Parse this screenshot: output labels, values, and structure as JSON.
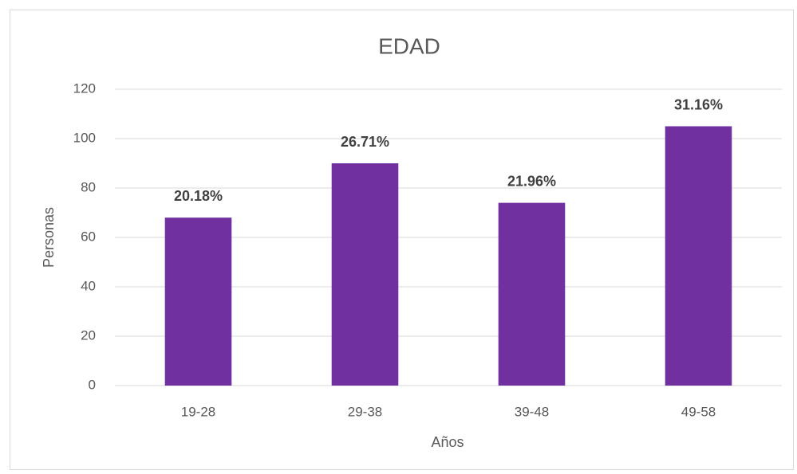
{
  "chart_data": {
    "type": "bar",
    "title": "EDAD",
    "x_label": "Años",
    "y_label": "Personas",
    "categories": [
      "19-28",
      "29-38",
      "39-48",
      "49-58"
    ],
    "values": [
      68,
      90,
      74,
      105
    ],
    "percent_labels": [
      "20.18%",
      "26.71%",
      "21.96%",
      "31.16%"
    ],
    "color": "#7030a0",
    "ylim": [
      0,
      120
    ],
    "yticks": [
      0,
      20,
      40,
      60,
      80,
      100,
      120
    ],
    "grid": true
  }
}
